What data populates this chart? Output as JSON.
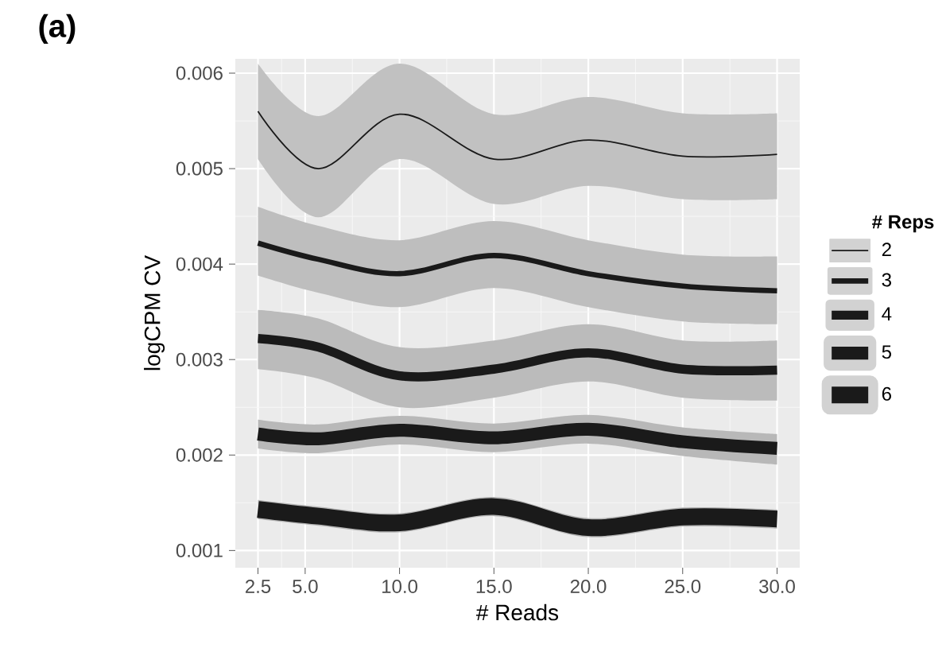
{
  "chart_data": {
    "type": "line",
    "title": "(a)",
    "xlabel": "# Reads",
    "ylabel": "logCPM CV",
    "legend_title": "# Reps",
    "x": [
      2.5,
      5.7,
      10,
      15,
      20,
      25,
      30
    ],
    "series": [
      {
        "name": "2",
        "color": "#1a1a1a",
        "values": [
          0.0056,
          0.005,
          0.00557,
          0.0051,
          0.0053,
          0.00513,
          0.00515
        ],
        "lower": [
          0.0051,
          0.00449,
          0.0051,
          0.00463,
          0.00482,
          0.00468,
          0.00468
        ],
        "upper": [
          0.0061,
          0.00555,
          0.0061,
          0.00557,
          0.00575,
          0.00558,
          0.00558
        ]
      },
      {
        "name": "3",
        "color": "#1a1a1a",
        "values": [
          0.00422,
          0.00405,
          0.0039,
          0.00409,
          0.0039,
          0.00377,
          0.00372
        ],
        "lower": [
          0.00388,
          0.0037,
          0.00355,
          0.00375,
          0.00355,
          0.0034,
          0.00337
        ],
        "upper": [
          0.0046,
          0.0044,
          0.00425,
          0.00445,
          0.00425,
          0.0041,
          0.00408
        ]
      },
      {
        "name": "4",
        "color": "#1a1a1a",
        "values": [
          0.00322,
          0.00313,
          0.00283,
          0.0029,
          0.00307,
          0.0029,
          0.00289
        ],
        "lower": [
          0.0029,
          0.0028,
          0.0025,
          0.0026,
          0.00277,
          0.0026,
          0.00257
        ],
        "upper": [
          0.00352,
          0.00343,
          0.00313,
          0.0032,
          0.00337,
          0.0032,
          0.0032
        ]
      },
      {
        "name": "5",
        "color": "#1a1a1a",
        "values": [
          0.00222,
          0.00217,
          0.00226,
          0.00218,
          0.00227,
          0.00214,
          0.00207
        ],
        "lower": [
          0.00207,
          0.00202,
          0.00211,
          0.00203,
          0.00212,
          0.00199,
          0.0019
        ],
        "upper": [
          0.00237,
          0.00232,
          0.00241,
          0.00233,
          0.00242,
          0.00229,
          0.00222
        ]
      },
      {
        "name": "6",
        "color": "#1a1a1a",
        "values": [
          0.00143,
          0.00136,
          0.00129,
          0.00146,
          0.00124,
          0.00135,
          0.00133
        ],
        "lower": [
          0.00133,
          0.00126,
          0.00119,
          0.00136,
          0.00114,
          0.00125,
          0.00123
        ],
        "upper": [
          0.00153,
          0.00146,
          0.00139,
          0.00156,
          0.00134,
          0.00145,
          0.00143
        ]
      }
    ],
    "xlim": [
      1.3,
      31.2
    ],
    "ylim": [
      0.00082,
      0.00615
    ],
    "xticks": [
      {
        "value": 2.5,
        "label": "2.5"
      },
      {
        "value": 5,
        "label": "5.0"
      },
      {
        "value": 10,
        "label": "10.0"
      },
      {
        "value": 15,
        "label": "15.0"
      },
      {
        "value": 20,
        "label": "20.0"
      },
      {
        "value": 25,
        "label": "25.0"
      },
      {
        "value": 30,
        "label": "30.0"
      }
    ],
    "yticks": [
      0.001,
      0.002,
      0.003,
      0.004,
      0.005,
      0.006
    ],
    "grid": true,
    "legend": "right",
    "marker": "none",
    "line_style": "solid"
  }
}
